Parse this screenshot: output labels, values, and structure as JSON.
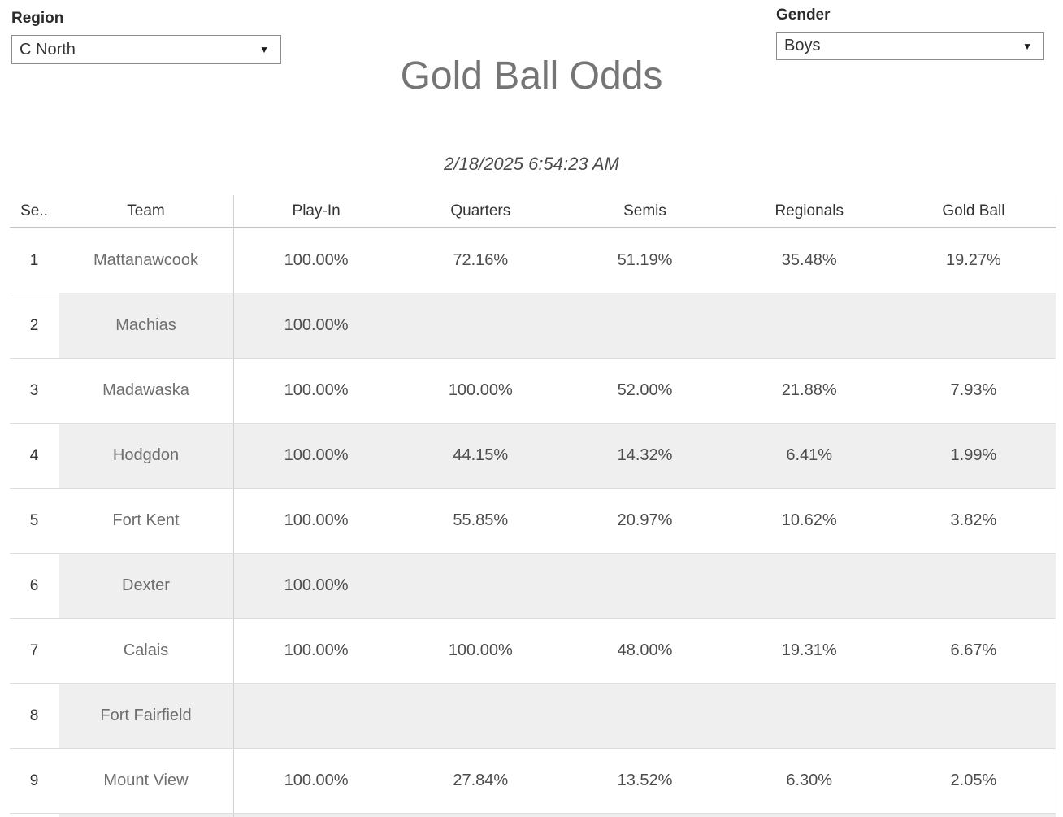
{
  "filters": {
    "region": {
      "label": "Region",
      "value": "C North"
    },
    "gender": {
      "label": "Gender",
      "value": "Boys"
    }
  },
  "icons": {
    "dropdown_arrow": "▼"
  },
  "title": "Gold Ball Odds",
  "timestamp": "2/18/2025 6:54:23 AM",
  "colors": {
    "title_text": "#757575",
    "band": "#efefef",
    "grid_border": "#d2d2d2",
    "value_text": "#4c4c4c"
  },
  "table": {
    "columns": [
      "Se..",
      "Team",
      "Play-In",
      "Quarters",
      "Semis",
      "Regionals",
      "Gold Ball"
    ],
    "rows": [
      {
        "seed": "1",
        "team": "Mattanawcook",
        "values": [
          "100.00%",
          "72.16%",
          "51.19%",
          "35.48%",
          "19.27%"
        ]
      },
      {
        "seed": "2",
        "team": "Machias",
        "values": [
          "100.00%",
          "",
          "",
          "",
          ""
        ]
      },
      {
        "seed": "3",
        "team": "Madawaska",
        "values": [
          "100.00%",
          "100.00%",
          "52.00%",
          "21.88%",
          "7.93%"
        ]
      },
      {
        "seed": "4",
        "team": "Hodgdon",
        "values": [
          "100.00%",
          "44.15%",
          "14.32%",
          "6.41%",
          "1.99%"
        ]
      },
      {
        "seed": "5",
        "team": "Fort Kent",
        "values": [
          "100.00%",
          "55.85%",
          "20.97%",
          "10.62%",
          "3.82%"
        ]
      },
      {
        "seed": "6",
        "team": "Dexter",
        "values": [
          "100.00%",
          "",
          "",
          "",
          ""
        ]
      },
      {
        "seed": "7",
        "team": "Calais",
        "values": [
          "100.00%",
          "100.00%",
          "48.00%",
          "19.31%",
          "6.67%"
        ]
      },
      {
        "seed": "8",
        "team": "Fort Fairfield",
        "values": [
          "",
          "",
          "",
          "",
          ""
        ]
      },
      {
        "seed": "9",
        "team": "Mount View",
        "values": [
          "100.00%",
          "27.84%",
          "13.52%",
          "6.30%",
          "2.05%"
        ]
      }
    ]
  }
}
